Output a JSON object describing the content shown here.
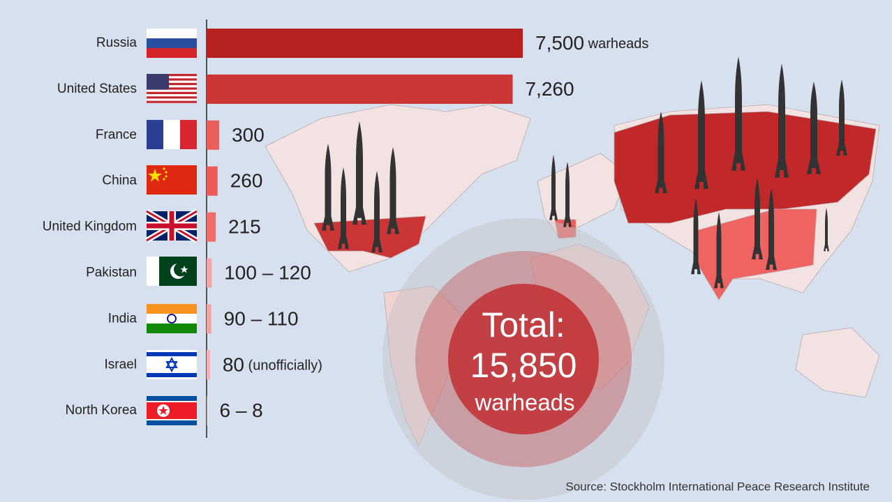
{
  "chart_data": {
    "type": "bar",
    "orientation": "horizontal",
    "categories": [
      "Russia",
      "United States",
      "France",
      "China",
      "United Kingdom",
      "Pakistan",
      "India",
      "Israel",
      "North Korea"
    ],
    "values": [
      7500,
      7260,
      300,
      260,
      215,
      [
        100,
        120
      ],
      [
        90,
        110
      ],
      80,
      [
        6,
        8
      ]
    ],
    "value_labels": [
      "7,500",
      "7,260",
      "300",
      "260",
      "215",
      "100 – 120",
      "90 – 110",
      "80",
      "6 – 8"
    ],
    "value_notes": [
      "warheads",
      null,
      null,
      null,
      null,
      null,
      null,
      "(unofficially)",
      null
    ],
    "colors": [
      "#b5221f",
      "#cc3535",
      "#e95f5c",
      "#ea5c59",
      "#ef6e6a",
      "#f3a5a3",
      "#f2a3a2",
      "#f3b0ae",
      "#f2b0ae"
    ],
    "total": {
      "label": "Total:",
      "value_label": "15,850",
      "unit": "warheads"
    },
    "source": "Source: Stockholm International Peace Research Institute"
  }
}
